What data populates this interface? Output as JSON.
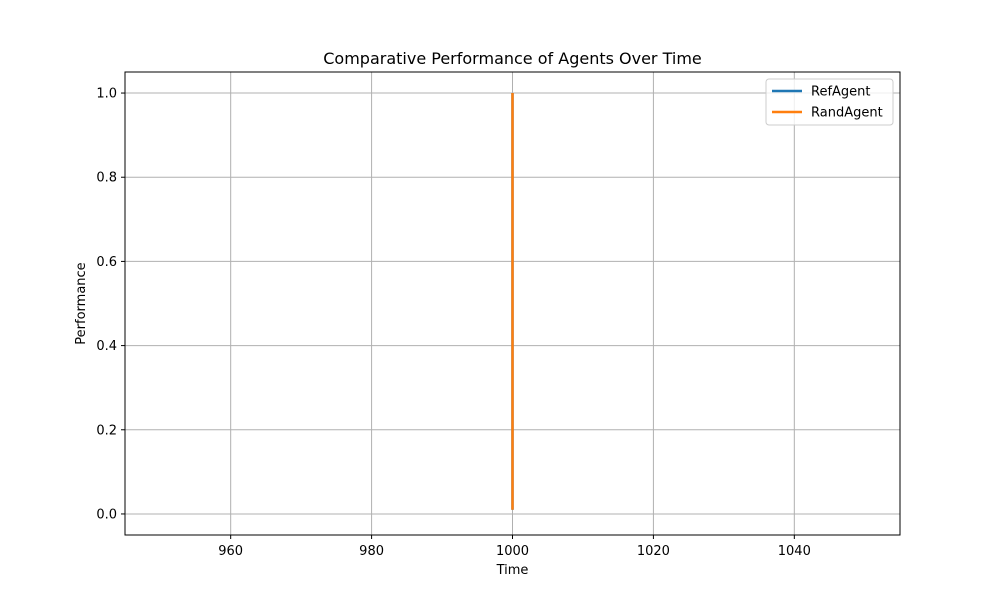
{
  "chart_data": {
    "type": "line",
    "title": "Comparative Performance of Agents Over Time",
    "xlabel": "Time",
    "ylabel": "Performance",
    "xlim": [
      945,
      1055
    ],
    "ylim": [
      -0.05,
      1.05
    ],
    "xticks": [
      960,
      980,
      1000,
      1020,
      1040
    ],
    "yticks": [
      0.0,
      0.2,
      0.4,
      0.6,
      0.8,
      1.0
    ],
    "ytick_labels": [
      "0.0",
      "0.2",
      "0.4",
      "0.6",
      "0.8",
      "1.0"
    ],
    "grid": true,
    "legend_position": "top-right",
    "series": [
      {
        "name": "RefAgent",
        "color": "#1f77b4",
        "x": [
          1000,
          1000
        ],
        "y": [
          0.01,
          1.0
        ]
      },
      {
        "name": "RandAgent",
        "color": "#ff7f0e",
        "x": [
          1000,
          1000
        ],
        "y": [
          0.01,
          1.0
        ]
      }
    ]
  }
}
